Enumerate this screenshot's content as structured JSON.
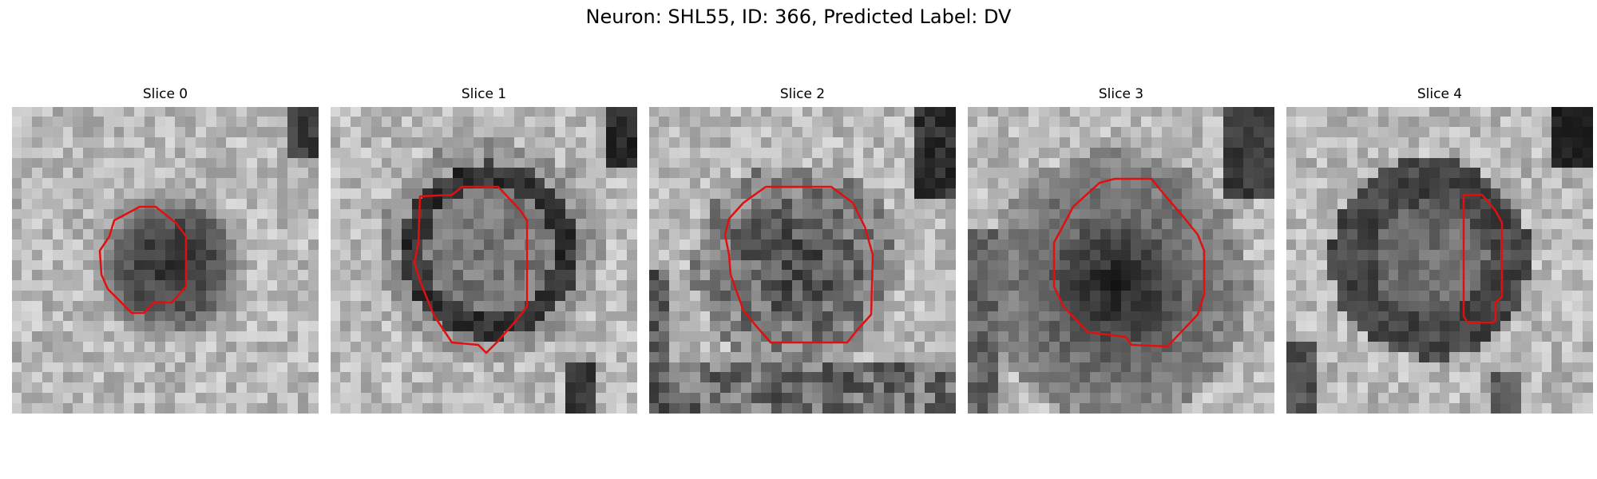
{
  "figure": {
    "title": "Neuron: SHL55, ID: 366, Predicted Label: DV"
  },
  "contour_color": "#e01010",
  "slices": [
    {
      "title": "Slice 0",
      "colormap": "gray",
      "shape_description": "irregular octagonal outline around a dark central blob"
    },
    {
      "title": "Slice 1",
      "colormap": "gray",
      "shape_description": "large rounded outline around a dark ring with lighter center"
    },
    {
      "title": "Slice 2",
      "colormap": "gray",
      "shape_description": "large octagonal outline around a speckled dark region"
    },
    {
      "title": "Slice 3",
      "colormap": "gray",
      "shape_description": "large octagonal outline around a dark central mass"
    },
    {
      "title": "Slice 4",
      "colormap": "gray",
      "shape_description": "narrow vertical rounded rectangle on the right side of a dark ring"
    }
  ]
}
